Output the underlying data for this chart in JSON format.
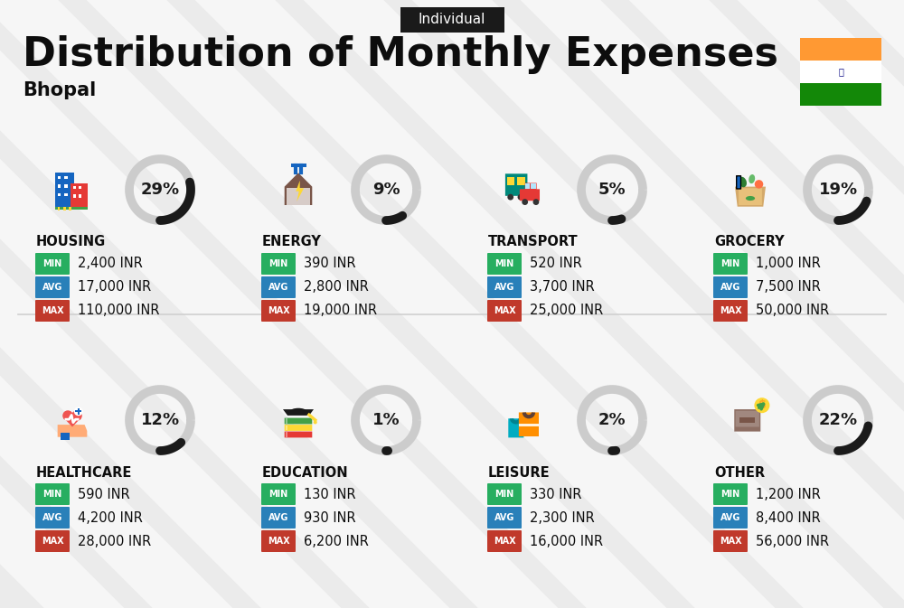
{
  "title": "Distribution of Monthly Expenses",
  "subtitle": "Individual",
  "city": "Bhopal",
  "bg_color": "#ebebeb",
  "categories": [
    {
      "name": "HOUSING",
      "percent": 29,
      "min": "2,400 INR",
      "avg": "17,000 INR",
      "max": "110,000 INR",
      "row": 0,
      "col": 0
    },
    {
      "name": "ENERGY",
      "percent": 9,
      "min": "390 INR",
      "avg": "2,800 INR",
      "max": "19,000 INR",
      "row": 0,
      "col": 1
    },
    {
      "name": "TRANSPORT",
      "percent": 5,
      "min": "520 INR",
      "avg": "3,700 INR",
      "max": "25,000 INR",
      "row": 0,
      "col": 2
    },
    {
      "name": "GROCERY",
      "percent": 19,
      "min": "1,000 INR",
      "avg": "7,500 INR",
      "max": "50,000 INR",
      "row": 0,
      "col": 3
    },
    {
      "name": "HEALTHCARE",
      "percent": 12,
      "min": "590 INR",
      "avg": "4,200 INR",
      "max": "28,000 INR",
      "row": 1,
      "col": 0
    },
    {
      "name": "EDUCATION",
      "percent": 1,
      "min": "130 INR",
      "avg": "930 INR",
      "max": "6,200 INR",
      "row": 1,
      "col": 1
    },
    {
      "name": "LEISURE",
      "percent": 2,
      "min": "330 INR",
      "avg": "2,300 INR",
      "max": "16,000 INR",
      "row": 1,
      "col": 2
    },
    {
      "name": "OTHER",
      "percent": 22,
      "min": "1,200 INR",
      "avg": "8,400 INR",
      "max": "56,000 INR",
      "row": 1,
      "col": 3
    }
  ],
  "color_min": "#27ae60",
  "color_avg": "#2980b9",
  "color_max": "#c0392b",
  "donut_filled": "#1a1a1a",
  "donut_empty": "#cccccc",
  "flag_orange": "#FF9933",
  "flag_green": "#138808",
  "stripe_color": "#ffffff",
  "divider_color": "#d0d0d0"
}
